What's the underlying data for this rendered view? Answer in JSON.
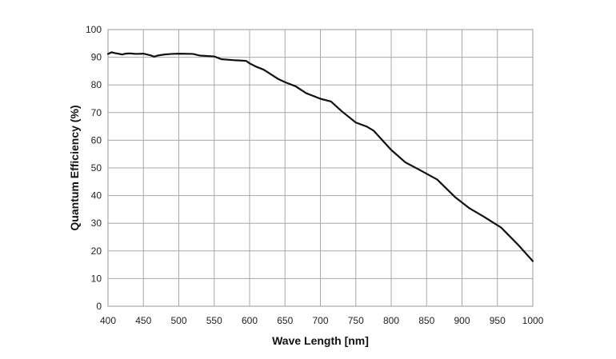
{
  "chart_data": {
    "type": "line",
    "title": "",
    "xlabel": "Wave Length [nm]",
    "ylabel": "Quantum Efficiency  (%)",
    "xlim": [
      400,
      1000
    ],
    "ylim": [
      0,
      100
    ],
    "xticks": [
      400,
      450,
      500,
      550,
      600,
      650,
      700,
      750,
      800,
      850,
      900,
      950,
      1000
    ],
    "yticks": [
      0,
      10,
      20,
      30,
      40,
      50,
      60,
      70,
      80,
      90,
      100
    ],
    "grid": true,
    "line_color": "#111111",
    "series": [
      {
        "x": [
          400,
          405,
          410,
          420,
          425,
          430,
          440,
          450,
          460,
          465,
          470,
          480,
          490,
          500,
          520,
          530,
          550,
          560,
          580,
          595,
          600,
          610,
          620,
          640,
          650,
          665,
          680,
          700,
          715,
          730,
          750,
          765,
          775,
          800,
          820,
          840,
          865,
          890,
          910,
          930,
          955,
          980,
          1000
        ],
        "y": [
          91.2,
          91.8,
          91.5,
          91.0,
          91.3,
          91.4,
          91.2,
          91.3,
          90.7,
          90.2,
          90.6,
          91.0,
          91.2,
          91.3,
          91.2,
          90.6,
          90.3,
          89.3,
          88.9,
          88.7,
          87.8,
          86.5,
          85.5,
          82.2,
          81.0,
          79.5,
          77.0,
          75.0,
          74.0,
          70.5,
          66.4,
          65.0,
          63.5,
          56.5,
          52.0,
          49.3,
          45.8,
          39.5,
          35.5,
          32.5,
          28.5,
          22.0,
          16.3
        ]
      }
    ]
  }
}
